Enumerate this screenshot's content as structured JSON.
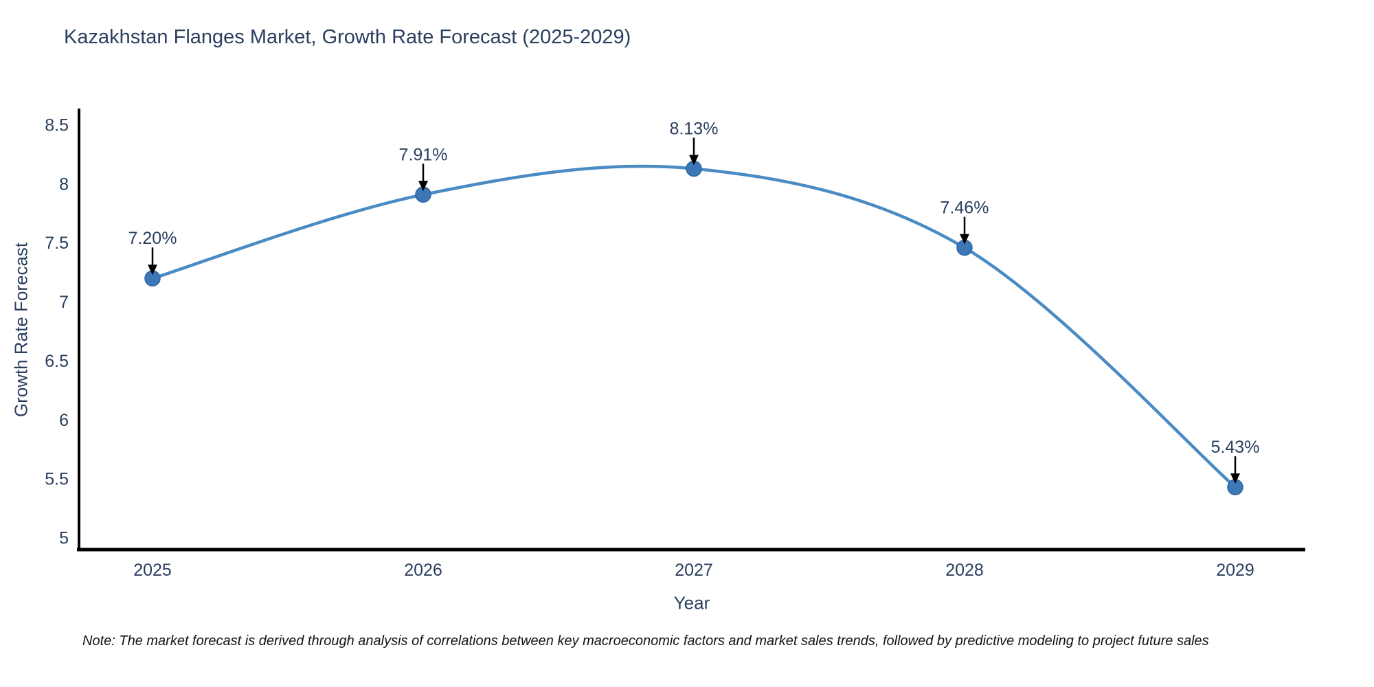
{
  "chart_data": {
    "type": "line",
    "title": "Kazakhstan Flanges Market, Growth Rate Forecast (2025-2029)",
    "xlabel": "Year",
    "ylabel": "Growth Rate Forecast",
    "categories": [
      "2025",
      "2026",
      "2027",
      "2028",
      "2029"
    ],
    "series": [
      {
        "name": "Growth Rate Forecast",
        "values": [
          7.2,
          7.91,
          8.13,
          7.46,
          5.43
        ],
        "point_labels": [
          "7.20%",
          "7.91%",
          "8.13%",
          "7.46%",
          "5.43%"
        ]
      }
    ],
    "line_shape": "spline",
    "markers": true,
    "annotations_arrows": true,
    "ylim": [
      5,
      8.5
    ],
    "ytick_values": [
      8.5,
      8,
      7.5,
      7,
      6.5,
      6,
      5.5,
      5
    ],
    "ytick_labels": [
      "8.5",
      "8",
      "7.5",
      "7",
      "6.5",
      "6",
      "5.5",
      "5"
    ],
    "grid": false,
    "legend_position": "none",
    "colors": {
      "line": "#4a8bc4",
      "marker_fill": "#3b78b5",
      "marker_edge": "#2f64a0",
      "axis_line": "#000000",
      "tick_text": "#2a3f5f",
      "annotation_text": "#2a3f5f",
      "annotation_arrow": "#000000",
      "background": "#ffffff"
    }
  },
  "note": "Note: The market forecast is derived through analysis of correlations between key macroeconomic factors and market sales trends, followed by predictive modeling to project future sales"
}
